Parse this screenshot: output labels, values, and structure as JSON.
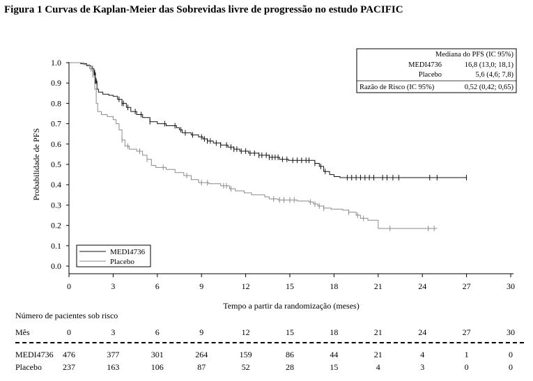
{
  "figure": {
    "title": "Figura 1 Curvas de Kaplan-Meier das Sobrevidas livre de progressão no estudo PACIFIC"
  },
  "chart_data": {
    "type": "line",
    "xlabel": "Tempo a partir da randomização (meses)",
    "ylabel": "Probabilidade de PFS",
    "xlim": [
      0,
      30
    ],
    "ylim": [
      0,
      1.0
    ],
    "xticks": [
      0,
      3,
      6,
      9,
      12,
      15,
      18,
      21,
      24,
      27,
      30
    ],
    "yticks": [
      0.0,
      0.1,
      0.2,
      0.3,
      0.4,
      0.5,
      0.6,
      0.7,
      0.8,
      0.9,
      1.0
    ],
    "ytick_labels": [
      "0.0",
      "0.1",
      "0.2",
      "0.3",
      "0.4",
      "0.5",
      "0.6",
      "0.7",
      "0.8",
      "0.9",
      "1.0"
    ],
    "grid": false,
    "legend_position": "bottom-left",
    "series": [
      {
        "name": "MEDI4736",
        "color": "#111111",
        "points": [
          [
            0,
            1.0
          ],
          [
            0.4,
            1.0
          ],
          [
            0.8,
            0.995
          ],
          [
            1.2,
            0.985
          ],
          [
            1.5,
            0.97
          ],
          [
            1.7,
            0.95
          ],
          [
            1.8,
            0.91
          ],
          [
            1.9,
            0.87
          ],
          [
            2.0,
            0.855
          ],
          [
            2.3,
            0.845
          ],
          [
            2.7,
            0.84
          ],
          [
            3.0,
            0.835
          ],
          [
            3.3,
            0.82
          ],
          [
            3.6,
            0.8
          ],
          [
            3.9,
            0.78
          ],
          [
            4.2,
            0.76
          ],
          [
            4.6,
            0.745
          ],
          [
            5.0,
            0.73
          ],
          [
            5.5,
            0.71
          ],
          [
            6.0,
            0.7
          ],
          [
            6.6,
            0.69
          ],
          [
            7.3,
            0.68
          ],
          [
            7.5,
            0.67
          ],
          [
            7.7,
            0.655
          ],
          [
            8.3,
            0.645
          ],
          [
            8.8,
            0.635
          ],
          [
            9.1,
            0.625
          ],
          [
            9.4,
            0.615
          ],
          [
            9.8,
            0.605
          ],
          [
            10.3,
            0.595
          ],
          [
            10.8,
            0.585
          ],
          [
            11.2,
            0.575
          ],
          [
            11.6,
            0.565
          ],
          [
            12.2,
            0.555
          ],
          [
            12.9,
            0.545
          ],
          [
            13.6,
            0.535
          ],
          [
            14.3,
            0.525
          ],
          [
            14.9,
            0.52
          ],
          [
            16.5,
            0.52
          ],
          [
            16.7,
            0.505
          ],
          [
            17.0,
            0.49
          ],
          [
            17.3,
            0.465
          ],
          [
            17.7,
            0.45
          ],
          [
            18.0,
            0.44
          ],
          [
            18.4,
            0.435
          ],
          [
            21.5,
            0.435
          ],
          [
            27.0,
            0.435
          ]
        ],
        "censor_x": [
          1.6,
          1.7,
          1.75,
          1.8,
          1.85,
          3.4,
          3.6,
          3.7,
          4.0,
          4.5,
          4.9,
          5.5,
          6.5,
          7.2,
          7.6,
          7.9,
          8.4,
          9.0,
          9.2,
          9.4,
          9.6,
          10.0,
          10.3,
          10.7,
          11.0,
          11.2,
          11.4,
          11.7,
          12.0,
          12.3,
          12.6,
          12.9,
          13.1,
          13.4,
          13.6,
          13.8,
          14.0,
          14.2,
          14.5,
          14.8,
          15.2,
          15.5,
          15.8,
          16.1,
          16.3,
          16.7,
          17.1,
          17.4,
          18.9,
          19.2,
          19.5,
          19.8,
          20.1,
          20.4,
          20.7,
          21.3,
          21.6,
          22.0,
          22.4,
          24.5,
          25.0,
          27.0
        ]
      },
      {
        "name": "Placebo",
        "color": "#8a8a8a",
        "points": [
          [
            0,
            1.0
          ],
          [
            0.6,
            1.0
          ],
          [
            1.0,
            0.99
          ],
          [
            1.4,
            0.97
          ],
          [
            1.6,
            0.93
          ],
          [
            1.75,
            0.87
          ],
          [
            1.85,
            0.8
          ],
          [
            1.95,
            0.76
          ],
          [
            2.2,
            0.745
          ],
          [
            2.6,
            0.735
          ],
          [
            3.0,
            0.72
          ],
          [
            3.2,
            0.7
          ],
          [
            3.4,
            0.67
          ],
          [
            3.6,
            0.62
          ],
          [
            3.8,
            0.59
          ],
          [
            4.1,
            0.575
          ],
          [
            4.6,
            0.565
          ],
          [
            5.0,
            0.545
          ],
          [
            5.3,
            0.525
          ],
          [
            5.6,
            0.495
          ],
          [
            5.9,
            0.485
          ],
          [
            6.6,
            0.475
          ],
          [
            7.2,
            0.46
          ],
          [
            7.8,
            0.445
          ],
          [
            8.3,
            0.425
          ],
          [
            8.8,
            0.41
          ],
          [
            9.5,
            0.405
          ],
          [
            10.3,
            0.395
          ],
          [
            10.9,
            0.38
          ],
          [
            11.3,
            0.37
          ],
          [
            11.9,
            0.36
          ],
          [
            12.4,
            0.35
          ],
          [
            13.0,
            0.35
          ],
          [
            13.3,
            0.34
          ],
          [
            13.6,
            0.33
          ],
          [
            14.2,
            0.325
          ],
          [
            15.5,
            0.32
          ],
          [
            16.3,
            0.315
          ],
          [
            16.6,
            0.305
          ],
          [
            16.9,
            0.295
          ],
          [
            17.3,
            0.285
          ],
          [
            17.8,
            0.28
          ],
          [
            18.6,
            0.275
          ],
          [
            19.0,
            0.265
          ],
          [
            19.5,
            0.25
          ],
          [
            19.8,
            0.235
          ],
          [
            20.3,
            0.225
          ],
          [
            20.7,
            0.225
          ],
          [
            21.0,
            0.185
          ],
          [
            23.3,
            0.185
          ],
          [
            25.0,
            0.185
          ]
        ],
        "censor_x": [
          1.5,
          3.6,
          4.0,
          4.8,
          5.3,
          6.4,
          8.0,
          9.0,
          9.4,
          10.5,
          10.7,
          11.0,
          13.9,
          14.3,
          14.6,
          15.0,
          15.3,
          16.4,
          16.7,
          17.0,
          17.3,
          19.0,
          19.6,
          20.0,
          21.8,
          24.4,
          24.8
        ]
      }
    ],
    "stats_box": {
      "header": "Mediana do PFS (IC 95%)",
      "rows": [
        {
          "label": "MEDI4736",
          "value": "16,8 (13,0; 18,1)"
        },
        {
          "label": "Placebo",
          "value": "5,6 (4,6; 7,8)"
        }
      ],
      "hr_label": "Razão de Risco (IC 95%)",
      "hr_value": "0,52 (0,42; 0,65)"
    }
  },
  "risk_table": {
    "title": "Número de pacientes sob risco",
    "month_label": "Mês",
    "months": [
      "0",
      "3",
      "6",
      "9",
      "12",
      "15",
      "18",
      "21",
      "24",
      "27",
      "30"
    ],
    "rows": [
      {
        "label": "MEDI4736",
        "values": [
          "476",
          "377",
          "301",
          "264",
          "159",
          "86",
          "44",
          "21",
          "4",
          "1",
          "0"
        ]
      },
      {
        "label": "Placebo",
        "values": [
          "237",
          "163",
          "106",
          "87",
          "52",
          "28",
          "15",
          "4",
          "3",
          "0",
          "0"
        ]
      }
    ]
  }
}
